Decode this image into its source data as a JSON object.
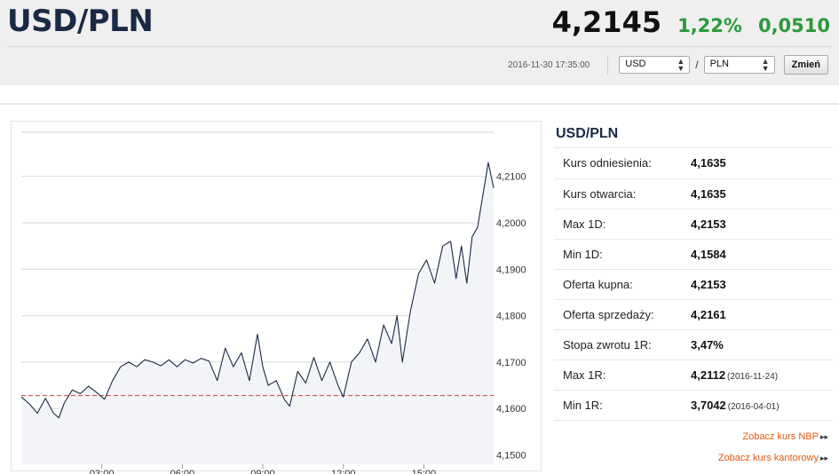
{
  "header": {
    "pair": "USD/PLN",
    "price": "4,2145",
    "change_pct": "1,22%",
    "change_abs": "0,0510",
    "timestamp": "2016-11-30 17:35:00",
    "from_currency": "USD",
    "to_currency": "PLN",
    "slash": "/",
    "change_button": "Zmień",
    "select_arrow_up": "▲",
    "select_arrow_down": "▼",
    "accent_green": "#2a9a3a"
  },
  "info": {
    "title": "USD/PLN",
    "rows": [
      {
        "label": "Kurs odniesienia:",
        "value": "4,1635",
        "date": ""
      },
      {
        "label": "Kurs otwarcia:",
        "value": "4,1635",
        "date": ""
      },
      {
        "label": "Max 1D:",
        "value": "4,2153",
        "date": ""
      },
      {
        "label": "Min 1D:",
        "value": "4,1584",
        "date": ""
      },
      {
        "label": "Oferta kupna:",
        "value": "4,2153",
        "date": ""
      },
      {
        "label": "Oferta sprzedaży:",
        "value": "4,2161",
        "date": ""
      },
      {
        "label": "Stopa zwrotu 1R:",
        "value": "3,47%",
        "date": ""
      },
      {
        "label": "Max 1R:",
        "value": "4,2112",
        "date": "(2016-11-24)"
      },
      {
        "label": "Min 1R:",
        "value": "3,7042",
        "date": "(2016-04-01)"
      }
    ],
    "links": [
      {
        "label": "Zobacz kurs NBP",
        "arrow": "▸▸"
      },
      {
        "label": "Zobacz kurs kantorowy",
        "arrow": "▸▸"
      }
    ]
  },
  "chart_data": {
    "type": "line",
    "title": "",
    "xlabel": "",
    "ylabel": "",
    "x_ticks": [
      "03:00",
      "06:00",
      "09:00",
      "12:00",
      "15:00"
    ],
    "x_tick_hours": [
      3,
      6,
      9,
      12,
      15
    ],
    "xlim": [
      0,
      17.6
    ],
    "y_ticks": [
      "4,2100",
      "4,2000",
      "4,1900",
      "4,1800",
      "4,1700",
      "4,1600",
      "4,1500"
    ],
    "y_tick_values": [
      4.21,
      4.2,
      4.19,
      4.18,
      4.17,
      4.16,
      4.15
    ],
    "ylim": [
      4.148,
      4.2195
    ],
    "reference_line": 4.1628,
    "line_color": "#1a2a44",
    "reference_color": "#d04040",
    "area_fill": "#f2f4f7",
    "grid": true,
    "legend": "none",
    "series": [
      {
        "x": [
          0,
          0.3,
          0.6,
          0.9,
          1.2,
          1.4,
          1.6,
          1.9,
          2.2,
          2.5,
          2.8,
          3.1,
          3.4,
          3.7,
          4.0,
          4.3,
          4.6,
          4.9,
          5.2,
          5.5,
          5.8,
          6.1,
          6.4,
          6.7,
          7.0,
          7.3,
          7.6,
          7.9,
          8.2,
          8.5,
          8.8,
          9.0,
          9.2,
          9.5,
          9.8,
          10.0,
          10.3,
          10.6,
          10.9,
          11.2,
          11.5,
          11.8,
          12.0,
          12.3,
          12.6,
          12.9,
          13.2,
          13.5,
          13.8,
          14.0,
          14.2,
          14.5,
          14.8,
          15.1,
          15.4,
          15.7,
          16.0,
          16.2,
          16.4,
          16.6,
          16.8,
          17.0,
          17.2,
          17.4,
          17.6
        ],
        "y": [
          4.1625,
          4.161,
          4.159,
          4.1622,
          4.159,
          4.158,
          4.1612,
          4.164,
          4.1632,
          4.1648,
          4.1635,
          4.162,
          4.166,
          4.169,
          4.17,
          4.169,
          4.1705,
          4.17,
          4.1692,
          4.1705,
          4.169,
          4.1705,
          4.1698,
          4.1708,
          4.1702,
          4.166,
          4.173,
          4.169,
          4.172,
          4.166,
          4.176,
          4.169,
          4.165,
          4.166,
          4.162,
          4.1605,
          4.168,
          4.1655,
          4.171,
          4.166,
          4.17,
          4.165,
          4.1625,
          4.17,
          4.172,
          4.175,
          4.17,
          4.178,
          4.174,
          4.18,
          4.17,
          4.181,
          4.189,
          4.192,
          4.187,
          4.195,
          4.196,
          4.188,
          4.195,
          4.187,
          4.197,
          4.199,
          4.206,
          4.213,
          4.2075
        ]
      }
    ]
  }
}
